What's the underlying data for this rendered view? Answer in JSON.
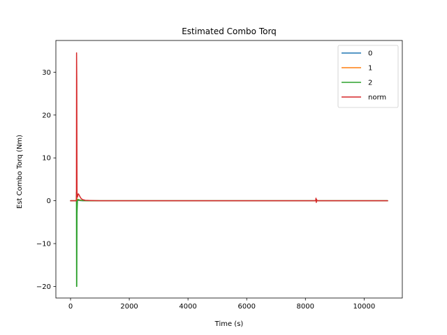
{
  "chart_data": {
    "type": "line",
    "title": "Estimated Combo Torq",
    "xlabel": "Time (s)",
    "ylabel": "Est Combo Torq (Nm)",
    "xlim": [
      -500,
      11300
    ],
    "ylim": [
      -22.7,
      37.4
    ],
    "xticks": [
      0,
      2000,
      4000,
      6000,
      8000,
      10000
    ],
    "xtick_labels": [
      "0",
      "2000",
      "4000",
      "6000",
      "8000",
      "10000"
    ],
    "yticks": [
      -20,
      -10,
      0,
      10,
      20,
      30
    ],
    "ytick_labels": [
      "−20",
      "−10",
      "0",
      "10",
      "20",
      "30"
    ],
    "grid": false,
    "legend_position": "top-right",
    "series": [
      {
        "name": "0",
        "color": "#1f77b4",
        "x": [
          0,
          150,
          195,
          200,
          205,
          215,
          240,
          300,
          400,
          600,
          1000,
          3000,
          6000,
          8350,
          8360,
          8370,
          8380,
          8400,
          10800
        ],
        "y": [
          0,
          0,
          0,
          0.3,
          -0.2,
          0.2,
          0.1,
          0.05,
          0,
          0,
          0,
          0,
          0,
          0,
          0.2,
          -0.2,
          0,
          0,
          0
        ]
      },
      {
        "name": "1",
        "color": "#ff7f0e",
        "x": [
          0,
          150,
          195,
          200,
          205,
          215,
          240,
          300,
          400,
          600,
          1000,
          3000,
          6000,
          8350,
          8360,
          8370,
          8380,
          8400,
          10800
        ],
        "y": [
          0,
          0,
          0,
          0.5,
          -0.4,
          0.5,
          0.3,
          0.1,
          0.05,
          0,
          0,
          0,
          0,
          0,
          0.3,
          -0.3,
          0,
          0,
          0
        ]
      },
      {
        "name": "2",
        "color": "#2ca02c",
        "x": [
          0,
          150,
          195,
          200,
          205,
          212,
          220,
          235,
          260,
          300,
          400,
          600,
          1000,
          3000,
          6000,
          8350,
          8360,
          8370,
          8380,
          8400,
          10800
        ],
        "y": [
          0,
          0,
          0,
          2,
          -20,
          -20,
          -3,
          0,
          0.3,
          0.2,
          0.05,
          0,
          0,
          0,
          0,
          0,
          0.1,
          -0.1,
          0,
          0,
          0
        ]
      },
      {
        "name": "norm",
        "color": "#d62728",
        "x": [
          0,
          150,
          195,
          200,
          205,
          212,
          220,
          235,
          250,
          270,
          300,
          350,
          400,
          500,
          700,
          1000,
          3000,
          6000,
          8350,
          8360,
          8370,
          8380,
          8400,
          10800
        ],
        "y": [
          0,
          0,
          0,
          1,
          34.5,
          28,
          2,
          0.8,
          1.5,
          1.6,
          1.2,
          0.6,
          0.3,
          0.1,
          0.05,
          0,
          0,
          0,
          0,
          0.6,
          -0.4,
          0.3,
          0,
          0
        ]
      }
    ]
  }
}
